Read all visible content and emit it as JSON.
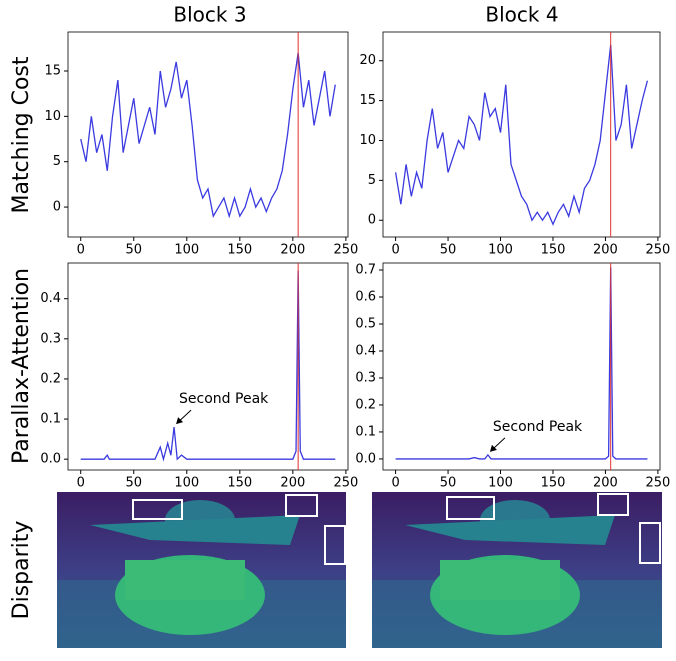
{
  "column_titles": [
    "Block 3",
    "Block 4"
  ],
  "row_labels": [
    "Matching Cost",
    "Parallax-Attention",
    "Disparity"
  ],
  "chart_data": [
    {
      "type": "line",
      "x": [
        0,
        5,
        10,
        15,
        20,
        25,
        30,
        35,
        40,
        45,
        50,
        55,
        60,
        65,
        70,
        75,
        80,
        85,
        90,
        95,
        100,
        105,
        110,
        115,
        120,
        125,
        130,
        135,
        140,
        145,
        150,
        155,
        160,
        165,
        170,
        175,
        180,
        185,
        190,
        195,
        200,
        205,
        210,
        215,
        220,
        225,
        230,
        235,
        240
      ],
      "series": [
        {
          "color": "#3a3ae0",
          "values": [
            7.5,
            5,
            10,
            6,
            8,
            4,
            10,
            14,
            6,
            9,
            12,
            7,
            9,
            11,
            8,
            15,
            11,
            13,
            16,
            12,
            14,
            9,
            3,
            1,
            2,
            -1,
            0,
            1,
            -1,
            1,
            -1,
            0,
            2,
            0,
            1,
            -0.5,
            1,
            2,
            4,
            8,
            13,
            17,
            11,
            14,
            9,
            12,
            15,
            10,
            13.5
          ]
        }
      ],
      "vline": {
        "x": 205,
        "color": "#e03030"
      },
      "xlim": [
        -12,
        252
      ],
      "xticks": [
        0,
        50,
        100,
        150,
        200,
        250
      ],
      "ylim": [
        -3.3,
        19.3
      ],
      "yticks": [
        0,
        5,
        10,
        15
      ]
    },
    {
      "type": "line",
      "x": [
        0,
        5,
        10,
        15,
        20,
        25,
        30,
        35,
        40,
        45,
        50,
        55,
        60,
        65,
        70,
        75,
        80,
        85,
        90,
        95,
        100,
        105,
        110,
        115,
        120,
        125,
        130,
        135,
        140,
        145,
        150,
        155,
        160,
        165,
        170,
        175,
        180,
        185,
        190,
        195,
        200,
        205,
        210,
        215,
        220,
        225,
        230,
        235,
        240
      ],
      "series": [
        {
          "color": "#3a3ae0",
          "values": [
            6,
            2,
            7,
            3,
            6,
            4,
            10,
            14,
            9,
            11,
            6,
            8,
            10,
            9,
            13,
            12,
            10,
            16,
            13,
            14,
            11,
            17,
            7,
            5,
            3,
            2,
            0,
            1,
            0,
            1,
            -0.5,
            1,
            2,
            0.5,
            3,
            1,
            4,
            5,
            7,
            10,
            16,
            22,
            10,
            12,
            17,
            9,
            12,
            15,
            17.5
          ]
        }
      ],
      "vline": {
        "x": 205,
        "color": "#e03030"
      },
      "xlim": [
        -12,
        252
      ],
      "xticks": [
        0,
        50,
        100,
        150,
        200,
        250
      ],
      "ylim": [
        -2.1,
        23.6
      ],
      "yticks": [
        0,
        5,
        10,
        15,
        20
      ]
    },
    {
      "type": "line",
      "x": [
        0,
        22,
        25,
        27,
        30,
        70,
        75,
        78,
        82,
        85,
        88,
        91,
        95,
        100,
        200,
        203,
        205,
        207,
        210,
        240
      ],
      "series": [
        {
          "color": "#3a3ae0",
          "values": [
            0,
            0,
            0.01,
            0,
            0,
            0,
            0.03,
            0,
            0.04,
            0.01,
            0.08,
            0,
            0.01,
            0,
            0,
            0.02,
            0.47,
            0.02,
            0,
            0
          ]
        }
      ],
      "vline": {
        "x": 205,
        "color": "#e03030"
      },
      "annotations": [
        {
          "text": "Second Peak",
          "x": 88,
          "y": 0.08
        }
      ],
      "xlim": [
        -12,
        252
      ],
      "xticks": [
        0,
        50,
        100,
        150,
        200,
        250
      ],
      "ylim": [
        -0.027,
        0.489
      ],
      "yticks": [
        {
          "value": 0,
          "label": "0.0"
        },
        0.1,
        0.2,
        0.3,
        0.4
      ]
    },
    {
      "type": "line",
      "x": [
        0,
        70,
        75,
        80,
        85,
        88,
        91,
        100,
        200,
        203,
        205,
        207,
        210,
        240
      ],
      "series": [
        {
          "color": "#3a3ae0",
          "values": [
            0,
            0,
            0.005,
            0,
            0,
            0.015,
            0,
            0,
            0,
            0.01,
            0.71,
            0.01,
            0,
            0
          ]
        }
      ],
      "vline": {
        "x": 205,
        "color": "#e03030"
      },
      "annotations": [
        {
          "text": "Second Peak",
          "x": 88,
          "y": 0.015
        }
      ],
      "xlim": [
        -12,
        252
      ],
      "xticks": [
        0,
        50,
        100,
        150,
        200,
        250
      ],
      "ylim": [
        -0.041,
        0.726
      ],
      "yticks": [
        {
          "value": 0,
          "label": "0.0"
        },
        0.1,
        0.2,
        0.3,
        0.4,
        0.5,
        0.6,
        0.7
      ]
    }
  ]
}
